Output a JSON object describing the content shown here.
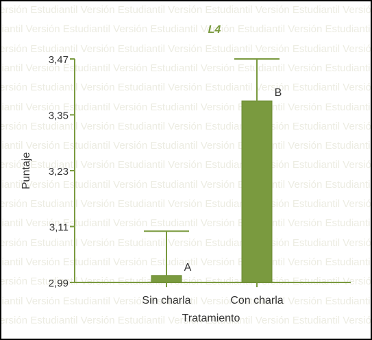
{
  "watermark": {
    "text": "Versión Estudiantil"
  },
  "colors": {
    "bar_fill": "#7a9a3f",
    "bar_stroke": "#6b8a32",
    "axis": "#7a9a3f",
    "title": "#7a9a3f",
    "text": "#333333"
  },
  "chart_data": {
    "type": "bar",
    "title": "L4",
    "xlabel": "Tratamiento",
    "ylabel": "Puntaje",
    "categories": [
      "Sin charla",
      "Con charla"
    ],
    "values": [
      3.005,
      3.38
    ],
    "error_upper": [
      3.1,
      3.47
    ],
    "significance_letters": [
      "A",
      "B"
    ],
    "yticks": [
      "2,99",
      "3,11",
      "3,23",
      "3,35",
      "3,47"
    ],
    "ytick_values": [
      2.99,
      3.11,
      3.23,
      3.35,
      3.47
    ],
    "ylim": [
      2.99,
      3.47
    ],
    "grid": false,
    "legend": "none"
  }
}
